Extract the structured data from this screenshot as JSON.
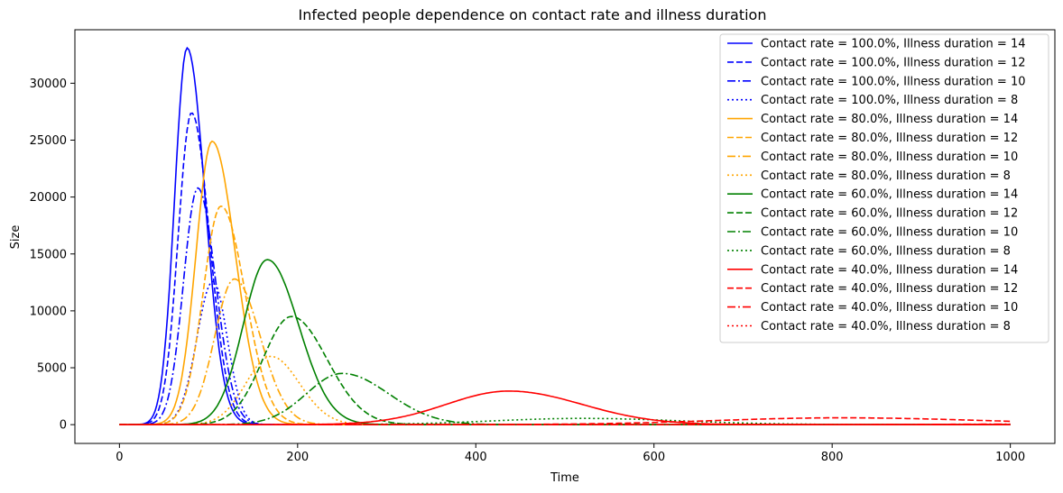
{
  "chart_data": {
    "type": "line",
    "title": "Infected people dependence on contact rate and illness duration",
    "xlabel": "Time",
    "ylabel": "Size",
    "xlim": [
      -50,
      1050
    ],
    "ylim": [
      -1650,
      34700
    ],
    "xticks": [
      0,
      200,
      400,
      600,
      800,
      1000
    ],
    "yticks": [
      0,
      5000,
      10000,
      15000,
      20000,
      25000,
      30000
    ],
    "grid": false,
    "legend_position": "top-right",
    "series": [
      {
        "name": "Contact rate = 100.0%, Illness duration = 14",
        "color": "#0000ff",
        "dash": "solid",
        "peak_x": 76,
        "peak_y": 33100,
        "left_width": 14,
        "right_width": 20
      },
      {
        "name": "Contact rate = 100.0%, Illness duration = 12",
        "color": "#0000ff",
        "dash": "dashed",
        "peak_x": 81,
        "peak_y": 27400,
        "left_width": 15,
        "right_width": 20
      },
      {
        "name": "Contact rate = 100.0%, Illness duration = 10",
        "color": "#0000ff",
        "dash": "dashdot",
        "peak_x": 88,
        "peak_y": 20800,
        "left_width": 16,
        "right_width": 20
      },
      {
        "name": "Contact rate = 100.0%, Illness duration = 8",
        "color": "#0000ff",
        "dash": "dotted",
        "peak_x": 105,
        "peak_y": 12600,
        "left_width": 18,
        "right_width": 16
      },
      {
        "name": "Contact rate = 80.0%, Illness duration = 14",
        "color": "#ffa500",
        "dash": "solid",
        "peak_x": 104,
        "peak_y": 24900,
        "left_width": 18,
        "right_width": 26
      },
      {
        "name": "Contact rate = 80.0%, Illness duration = 12",
        "color": "#ffa500",
        "dash": "dashed",
        "peak_x": 114,
        "peak_y": 19200,
        "left_width": 20,
        "right_width": 27
      },
      {
        "name": "Contact rate = 80.0%, Illness duration = 10",
        "color": "#ffa500",
        "dash": "dashdot",
        "peak_x": 129,
        "peak_y": 12800,
        "left_width": 22,
        "right_width": 29
      },
      {
        "name": "Contact rate = 80.0%, Illness duration = 8",
        "color": "#ffa500",
        "dash": "dotted",
        "peak_x": 170,
        "peak_y": 6000,
        "left_width": 28,
        "right_width": 32
      },
      {
        "name": "Contact rate = 60.0%, Illness duration = 14",
        "color": "#008000",
        "dash": "solid",
        "peak_x": 166,
        "peak_y": 14500,
        "left_width": 27,
        "right_width": 35
      },
      {
        "name": "Contact rate = 60.0%, Illness duration = 12",
        "color": "#008000",
        "dash": "dashed",
        "peak_x": 193,
        "peak_y": 9500,
        "left_width": 32,
        "right_width": 40
      },
      {
        "name": "Contact rate = 60.0%, Illness duration = 10",
        "color": "#008000",
        "dash": "dashdot",
        "peak_x": 250,
        "peak_y": 4500,
        "left_width": 40,
        "right_width": 52
      },
      {
        "name": "Contact rate = 60.0%, Illness duration = 8",
        "color": "#008000",
        "dash": "dotted",
        "peak_x": 520,
        "peak_y": 550,
        "left_width": 100,
        "right_width": 110
      },
      {
        "name": "Contact rate = 40.0%, Illness duration = 14",
        "color": "#ff0000",
        "dash": "solid",
        "peak_x": 437,
        "peak_y": 2950,
        "left_width": 70,
        "right_width": 82
      },
      {
        "name": "Contact rate = 40.0%, Illness duration = 12",
        "color": "#ff0000",
        "dash": "dashed",
        "peak_x": 810,
        "peak_y": 600,
        "left_width": 140,
        "right_width": 160
      },
      {
        "name": "Contact rate = 40.0%, Illness duration = 10",
        "color": "#ff0000",
        "dash": "dashdot",
        "peak_x": 1200,
        "peak_y": 80,
        "left_width": 200,
        "right_width": 200
      },
      {
        "name": "Contact rate = 40.0%, Illness duration = 8",
        "color": "#ff0000",
        "dash": "dotted",
        "peak_x": 1400,
        "peak_y": 20,
        "left_width": 250,
        "right_width": 250
      }
    ]
  }
}
